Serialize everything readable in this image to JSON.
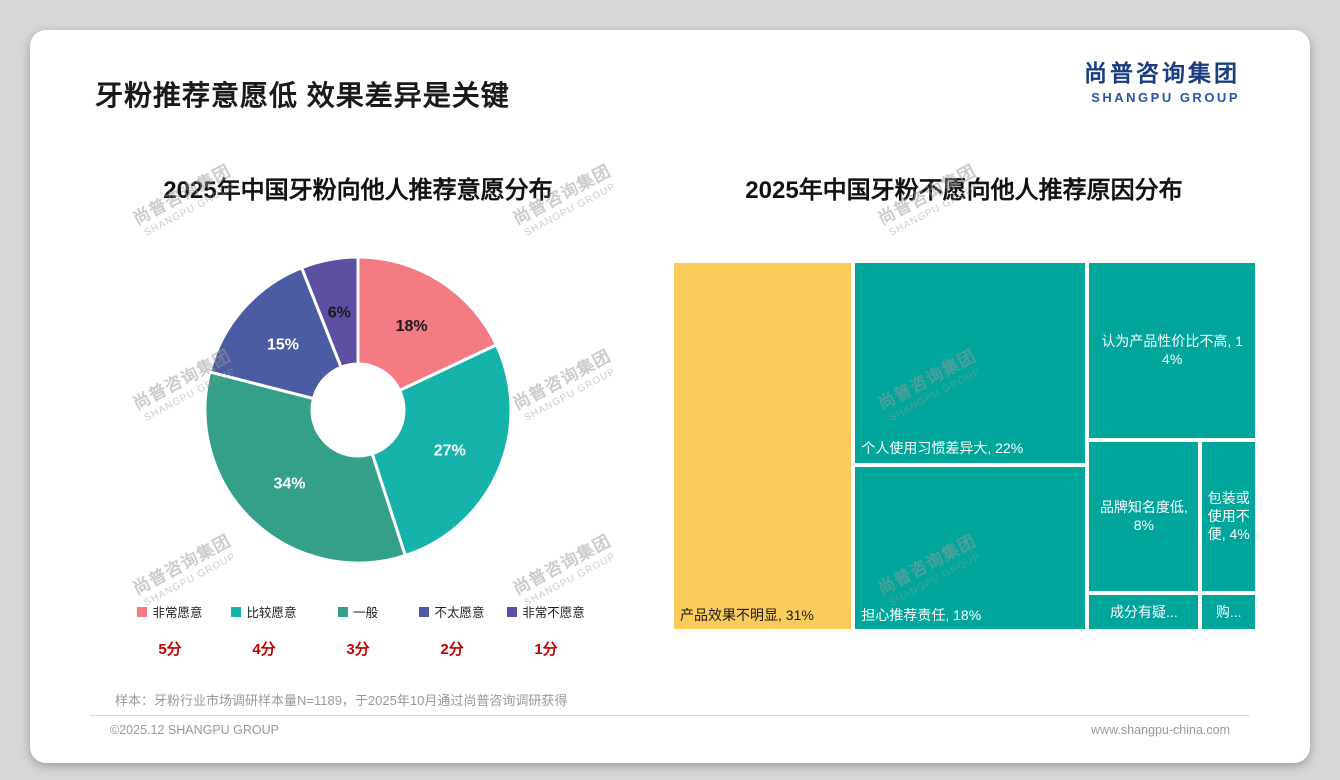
{
  "page": {
    "title": "牙粉推荐意愿低 效果差异是关键",
    "logo": {
      "cn": "尚普咨询集团",
      "en": "SHANGPU GROUP"
    },
    "watermark": {
      "cn": "尚普咨询集团",
      "en": "SHANGPU GROUP"
    },
    "footnote": "样本：牙粉行业市场调研样本量N=1189，于2025年10月通过尚普咨询调研获得",
    "footer_left": "©2025.12 SHANGPU GROUP",
    "footer_right": "www.shangpu-china.com"
  },
  "chart_data": [
    {
      "type": "pie",
      "donut": true,
      "title": "2025年中国牙粉向他人推荐意愿分布",
      "labels": [
        "非常愿意",
        "比较愿意",
        "一般",
        "不太愿意",
        "非常不愿意"
      ],
      "values": [
        18,
        27,
        34,
        15,
        6
      ],
      "value_labels": [
        "18%",
        "27%",
        "34%",
        "15%",
        "6%"
      ],
      "colors": [
        "#F47A83",
        "#16B3AB",
        "#35A08A",
        "#4C5CA2",
        "#5D4FA1"
      ],
      "label_colors": [
        "#1a1a1a",
        "#ffffff",
        "#ffffff",
        "#ffffff",
        "#1a1a1a"
      ],
      "scores": [
        "5分",
        "4分",
        "3分",
        "2分",
        "1分"
      ],
      "legend_position": "bottom",
      "score_color": "#c00000"
    },
    {
      "type": "treemap",
      "title": "2025年中国牙粉不愿向他人推荐原因分布",
      "items": [
        {
          "label": "产品效果不明显, 31%",
          "value": 31,
          "color": "#FBCB5C",
          "text_color": "#1a1a1a",
          "label_pos": "bottom-left"
        },
        {
          "label": "个人使用习惯差异大, 22%",
          "value": 22,
          "color": "#00A69B",
          "text_color": "#ffffff",
          "label_pos": "bottom-left"
        },
        {
          "label": "担心推荐责任, 18%",
          "value": 18,
          "color": "#00A69B",
          "text_color": "#ffffff",
          "label_pos": "bottom-left"
        },
        {
          "label": "认为产品性价比不高, 14%",
          "value": 14,
          "color": "#00A69B",
          "text_color": "#ffffff",
          "label_pos": "center"
        },
        {
          "label": "品牌知名度低, 8%",
          "value": 8,
          "color": "#00A69B",
          "text_color": "#ffffff",
          "label_pos": "center"
        },
        {
          "label": "包装或使用不便, 4%",
          "value": 4,
          "color": "#00A69B",
          "text_color": "#ffffff",
          "label_pos": "center"
        },
        {
          "label": "成分有疑...",
          "value": 2,
          "color": "#00A69B",
          "text_color": "#ffffff",
          "label_pos": "center"
        },
        {
          "label": "购...",
          "value": 1,
          "color": "#00A69B",
          "text_color": "#ffffff",
          "label_pos": "center"
        }
      ]
    }
  ]
}
